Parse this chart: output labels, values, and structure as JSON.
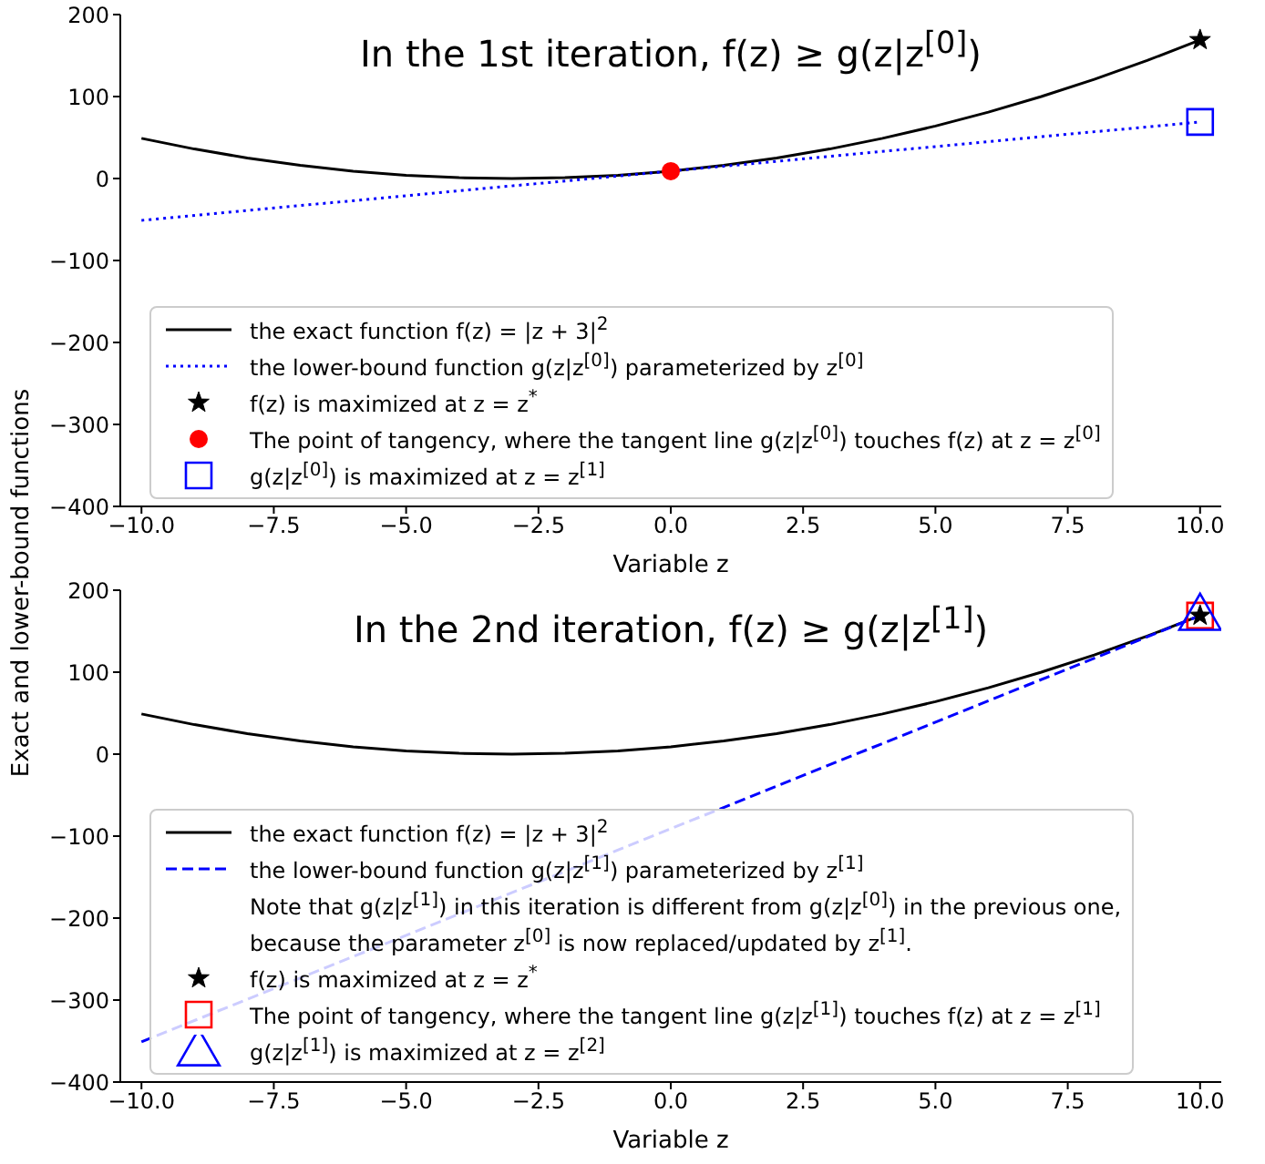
{
  "chart_data": [
    {
      "type": "line",
      "title": "In the 1st iteration, f(z) ≥ g(z|z$^{[0]}$)",
      "xlabel": "Variable z",
      "ylabel": "Exact and lower-bound functions",
      "xlim": [
        -10.4,
        10.4
      ],
      "xticks": [
        {
          "value": -10,
          "label": "−10.0"
        },
        {
          "value": -7.5,
          "label": "−7.5"
        },
        {
          "value": -5,
          "label": "−5.0"
        },
        {
          "value": -2.5,
          "label": "−2.5"
        },
        {
          "value": 0,
          "label": "0.0"
        },
        {
          "value": 2.5,
          "label": "2.5"
        },
        {
          "value": 5,
          "label": "5.0"
        },
        {
          "value": 7.5,
          "label": "7.5"
        },
        {
          "value": 10,
          "label": "10.0"
        }
      ],
      "ylim": [
        -400,
        200
      ],
      "yticks": [
        {
          "value": -400,
          "label": "−400"
        },
        {
          "value": -300,
          "label": "−300"
        },
        {
          "value": -200,
          "label": "−200"
        },
        {
          "value": -100,
          "label": "−100"
        },
        0,
        100,
        200
      ],
      "grid": false,
      "legend": "bottom left",
      "series": [
        {
          "name": "the exact function f(z) = |z + 3|$^{2}$",
          "color": "#000000",
          "line_style": "solid",
          "marker": "none",
          "x": [
            -10,
            -9,
            -8,
            -7,
            -6,
            -5,
            -4,
            -3,
            -2,
            -1,
            0,
            1,
            2,
            3,
            4,
            5,
            6,
            7,
            8,
            9,
            10
          ],
          "values": [
            49,
            36,
            25,
            16,
            9,
            4,
            1,
            0,
            1,
            4,
            9,
            16,
            25,
            36,
            49,
            64,
            81,
            100,
            121,
            144,
            169
          ]
        },
        {
          "name": "the lower-bound function g(z|z$^{[0]}$) parameterized by z$^{[0]}$",
          "color": "#0000ff",
          "line_style": "dotted",
          "marker": "none",
          "x": [
            -10,
            10
          ],
          "values": [
            -51,
            69
          ]
        },
        {
          "type": "scatter",
          "name": "f(z) is maximized at z = z$^{*}$",
          "color": "#000000",
          "marker": "star",
          "x": [
            10
          ],
          "values": [
            169
          ]
        },
        {
          "type": "scatter",
          "name": "The point of tangency, where the tangent line g(z|z$^{[0]}$) touches f(z) at z = z$^{[0]}$",
          "color": "#ff0000",
          "marker": "circle",
          "x": [
            0
          ],
          "values": [
            9
          ]
        },
        {
          "type": "scatter",
          "name": "g(z|z$^{[0]}$) is maximized at z = z$^{[1]}$",
          "color": "#0000ff",
          "marker": "square",
          "x": [
            10
          ],
          "values": [
            69
          ]
        }
      ]
    },
    {
      "type": "line",
      "title": "In the 2nd iteration, f(z) ≥ g(z|z$^{[1]}$)",
      "xlabel": "Variable z",
      "xlim": [
        -10.4,
        10.4
      ],
      "xticks": [
        {
          "value": -10,
          "label": "−10.0"
        },
        {
          "value": -7.5,
          "label": "−7.5"
        },
        {
          "value": -5,
          "label": "−5.0"
        },
        {
          "value": -2.5,
          "label": "−2.5"
        },
        {
          "value": 0,
          "label": "0.0"
        },
        {
          "value": 2.5,
          "label": "2.5"
        },
        {
          "value": 5,
          "label": "5.0"
        },
        {
          "value": 7.5,
          "label": "7.5"
        },
        {
          "value": 10,
          "label": "10.0"
        }
      ],
      "ylim": [
        -400,
        200
      ],
      "yticks": [
        {
          "value": -400,
          "label": "−400"
        },
        {
          "value": -300,
          "label": "−300"
        },
        {
          "value": -200,
          "label": "−200"
        },
        {
          "value": -100,
          "label": "−100"
        },
        0,
        100,
        200
      ],
      "grid": false,
      "legend": "bottom left",
      "annotations": [
        "Note that g(z|z$^{[1]}$) in this iteration is different from g(z|z$^{[0]}$) in the previous one,",
        "because the parameter z$^{[0]}$ is now replaced/updated by z$^{[1]}$."
      ],
      "series": [
        {
          "name": "the exact function f(z) = |z + 3|$^{2}$",
          "color": "#000000",
          "line_style": "solid",
          "marker": "none",
          "x": [
            -10,
            -9,
            -8,
            -7,
            -6,
            -5,
            -4,
            -3,
            -2,
            -1,
            0,
            1,
            2,
            3,
            4,
            5,
            6,
            7,
            8,
            9,
            10
          ],
          "values": [
            49,
            36,
            25,
            16,
            9,
            4,
            1,
            0,
            1,
            4,
            9,
            16,
            25,
            36,
            49,
            64,
            81,
            100,
            121,
            144,
            169
          ]
        },
        {
          "name": "the lower-bound function g(z|z$^{[1]}$) parameterized by z$^{[1]}$",
          "color": "#0000ff",
          "line_style": "dashed",
          "marker": "none",
          "x": [
            -10,
            10
          ],
          "values": [
            -351,
            169
          ]
        },
        {
          "type": "scatter",
          "name": "f(z) is maximized at z = z$^{*}$",
          "color": "#000000",
          "marker": "star",
          "x": [
            10
          ],
          "values": [
            169
          ]
        },
        {
          "type": "scatter",
          "name": "The point of tangency, where the tangent line g(z|z$^{[1]}$) touches f(z) at z = z$^{[1]}$",
          "color": "#ff0000",
          "marker": "square",
          "x": [
            10
          ],
          "values": [
            169
          ]
        },
        {
          "type": "scatter",
          "name": "g(z|z$^{[1]}$) is maximized at z = z$^{[2]}$",
          "color": "#0000ff",
          "marker": "triangle",
          "x": [
            10
          ],
          "values": [
            169
          ]
        }
      ]
    }
  ]
}
